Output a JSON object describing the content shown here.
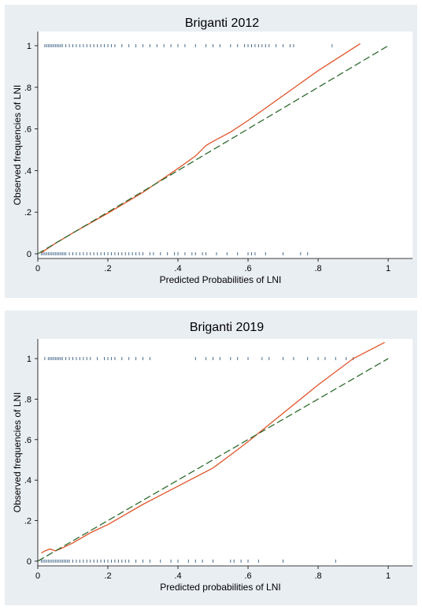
{
  "chart_data": [
    {
      "type": "line",
      "title": "Briganti 2012",
      "xlabel": "Predicted Probabilities of LNI",
      "ylabel": "Observed frequencies of LNI",
      "xlim": [
        0,
        1
      ],
      "ylim": [
        0,
        1
      ],
      "x_ticks": [
        "0",
        ".2",
        ".4",
        ".6",
        ".8",
        "1"
      ],
      "y_ticks": [
        "0",
        ".2",
        ".4",
        ".6",
        ".8",
        "1"
      ],
      "grid": false,
      "series": [
        {
          "color": "#e0542a",
          "style": "solid",
          "x": [
            0.01,
            0.05,
            0.1,
            0.2,
            0.3,
            0.4,
            0.45,
            0.48,
            0.5,
            0.55,
            0.6,
            0.7,
            0.8,
            0.92
          ],
          "y": [
            0.005,
            0.05,
            0.1,
            0.195,
            0.295,
            0.41,
            0.47,
            0.52,
            0.54,
            0.585,
            0.64,
            0.76,
            0.88,
            1.01
          ]
        },
        {
          "color": "#2e6b2e",
          "style": "dashed",
          "x": [
            0,
            1
          ],
          "y": [
            0,
            1
          ]
        }
      ],
      "rug_top": [
        0.02,
        0.025,
        0.03,
        0.035,
        0.04,
        0.045,
        0.05,
        0.055,
        0.06,
        0.065,
        0.07,
        0.08,
        0.09,
        0.1,
        0.11,
        0.12,
        0.13,
        0.14,
        0.15,
        0.16,
        0.17,
        0.18,
        0.19,
        0.2,
        0.21,
        0.22,
        0.24,
        0.26,
        0.28,
        0.3,
        0.32,
        0.34,
        0.36,
        0.38,
        0.4,
        0.42,
        0.45,
        0.48,
        0.5,
        0.52,
        0.55,
        0.57,
        0.59,
        0.6,
        0.61,
        0.62,
        0.63,
        0.64,
        0.65,
        0.66,
        0.68,
        0.7,
        0.72,
        0.73,
        0.84
      ],
      "rug_bottom": [
        0.01,
        0.015,
        0.02,
        0.025,
        0.03,
        0.035,
        0.04,
        0.045,
        0.05,
        0.055,
        0.06,
        0.065,
        0.07,
        0.075,
        0.08,
        0.09,
        0.1,
        0.11,
        0.12,
        0.13,
        0.14,
        0.15,
        0.16,
        0.17,
        0.18,
        0.19,
        0.2,
        0.21,
        0.22,
        0.23,
        0.24,
        0.25,
        0.26,
        0.27,
        0.28,
        0.29,
        0.3,
        0.32,
        0.33,
        0.35,
        0.37,
        0.39,
        0.4,
        0.42,
        0.44,
        0.45,
        0.47,
        0.48,
        0.51,
        0.54,
        0.57,
        0.6,
        0.61,
        0.62,
        0.65,
        0.7,
        0.75,
        0.77
      ]
    },
    {
      "type": "line",
      "title": "Briganti 2019",
      "xlabel": "Predicted probabilities of LNI",
      "ylabel": "Observed frequencies of LNI",
      "xlim": [
        0,
        1
      ],
      "ylim": [
        0,
        1
      ],
      "x_ticks": [
        "0",
        ".2",
        ".4",
        ".6",
        ".8",
        "1"
      ],
      "y_ticks": [
        "0",
        ".2",
        ".4",
        ".6",
        ".8",
        "1"
      ],
      "grid": false,
      "series": [
        {
          "color": "#e0542a",
          "style": "solid",
          "x": [
            0.01,
            0.02,
            0.035,
            0.05,
            0.07,
            0.1,
            0.15,
            0.2,
            0.3,
            0.4,
            0.5,
            0.57,
            0.6,
            0.7,
            0.8,
            0.9,
            0.99
          ],
          "y": [
            0.04,
            0.05,
            0.06,
            0.05,
            0.065,
            0.09,
            0.14,
            0.18,
            0.28,
            0.37,
            0.46,
            0.55,
            0.59,
            0.73,
            0.87,
            1.0,
            1.08
          ]
        },
        {
          "color": "#2e6b2e",
          "style": "dashed",
          "x": [
            0,
            1
          ],
          "y": [
            0,
            1
          ]
        }
      ],
      "rug_top": [
        0.02,
        0.03,
        0.035,
        0.04,
        0.045,
        0.05,
        0.055,
        0.06,
        0.065,
        0.07,
        0.08,
        0.09,
        0.1,
        0.11,
        0.12,
        0.13,
        0.14,
        0.15,
        0.17,
        0.19,
        0.2,
        0.21,
        0.22,
        0.24,
        0.26,
        0.28,
        0.3,
        0.32,
        0.45,
        0.48,
        0.5,
        0.52,
        0.55,
        0.57,
        0.6,
        0.64,
        0.66,
        0.7,
        0.73,
        0.77,
        0.8,
        0.82,
        0.85,
        0.88,
        0.9
      ],
      "rug_bottom": [
        0.01,
        0.015,
        0.02,
        0.025,
        0.03,
        0.035,
        0.04,
        0.045,
        0.05,
        0.055,
        0.06,
        0.065,
        0.07,
        0.075,
        0.08,
        0.085,
        0.09,
        0.1,
        0.11,
        0.12,
        0.13,
        0.14,
        0.15,
        0.16,
        0.17,
        0.18,
        0.19,
        0.2,
        0.21,
        0.22,
        0.23,
        0.24,
        0.25,
        0.26,
        0.28,
        0.3,
        0.32,
        0.35,
        0.38,
        0.4,
        0.43,
        0.45,
        0.47,
        0.5,
        0.55,
        0.56,
        0.58,
        0.6,
        0.63,
        0.7,
        0.85
      ]
    }
  ]
}
